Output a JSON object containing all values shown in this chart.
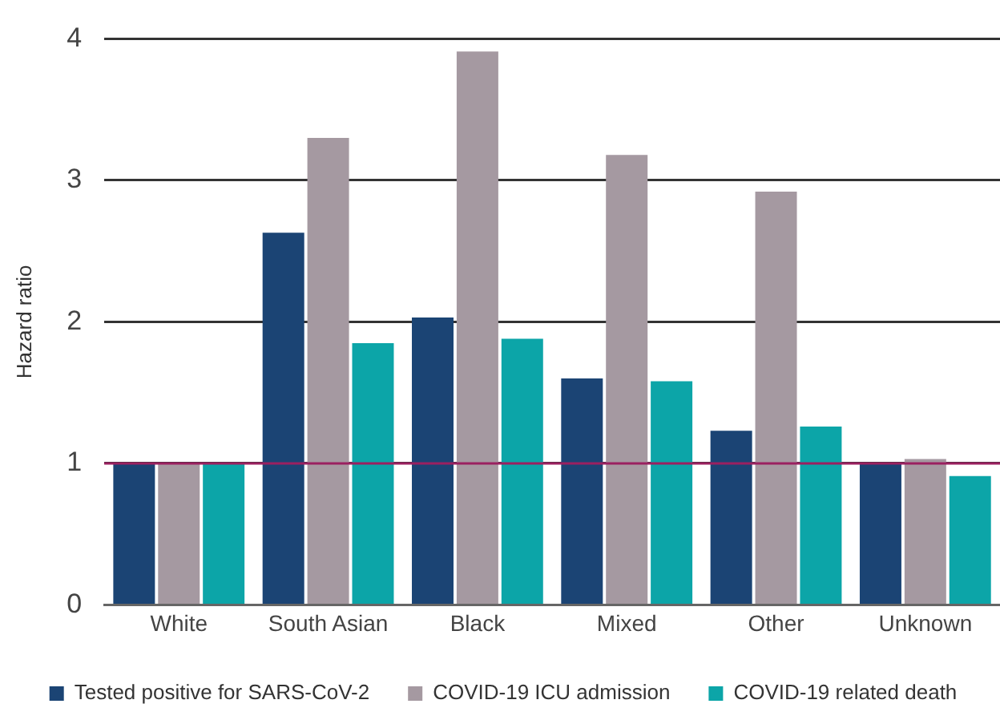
{
  "chart_data": {
    "type": "bar",
    "ylabel": "Hazard ratio",
    "categories": [
      "White",
      "South Asian",
      "Black",
      "Mixed",
      "Other",
      "Unknown"
    ],
    "series": [
      {
        "name": "Tested positive for SARS-CoV-2",
        "color": "#1b4474",
        "values": [
          1.0,
          2.63,
          2.03,
          1.6,
          1.23,
          1.0
        ]
      },
      {
        "name": "COVID-19 ICU admission",
        "color": "#a599a1",
        "values": [
          1.0,
          3.3,
          3.91,
          3.18,
          2.92,
          1.03
        ]
      },
      {
        "name": "COVID-19 related death",
        "color": "#0ca5a8",
        "values": [
          1.0,
          1.85,
          1.88,
          1.58,
          1.26,
          0.91
        ]
      }
    ],
    "ylim": [
      0,
      4
    ],
    "yticks": [
      0,
      1,
      2,
      3,
      4
    ],
    "grid": "y",
    "legend": "bottom",
    "ref_lines": [
      {
        "axis": "y",
        "value": 1,
        "color": "#9b2060"
      }
    ]
  }
}
